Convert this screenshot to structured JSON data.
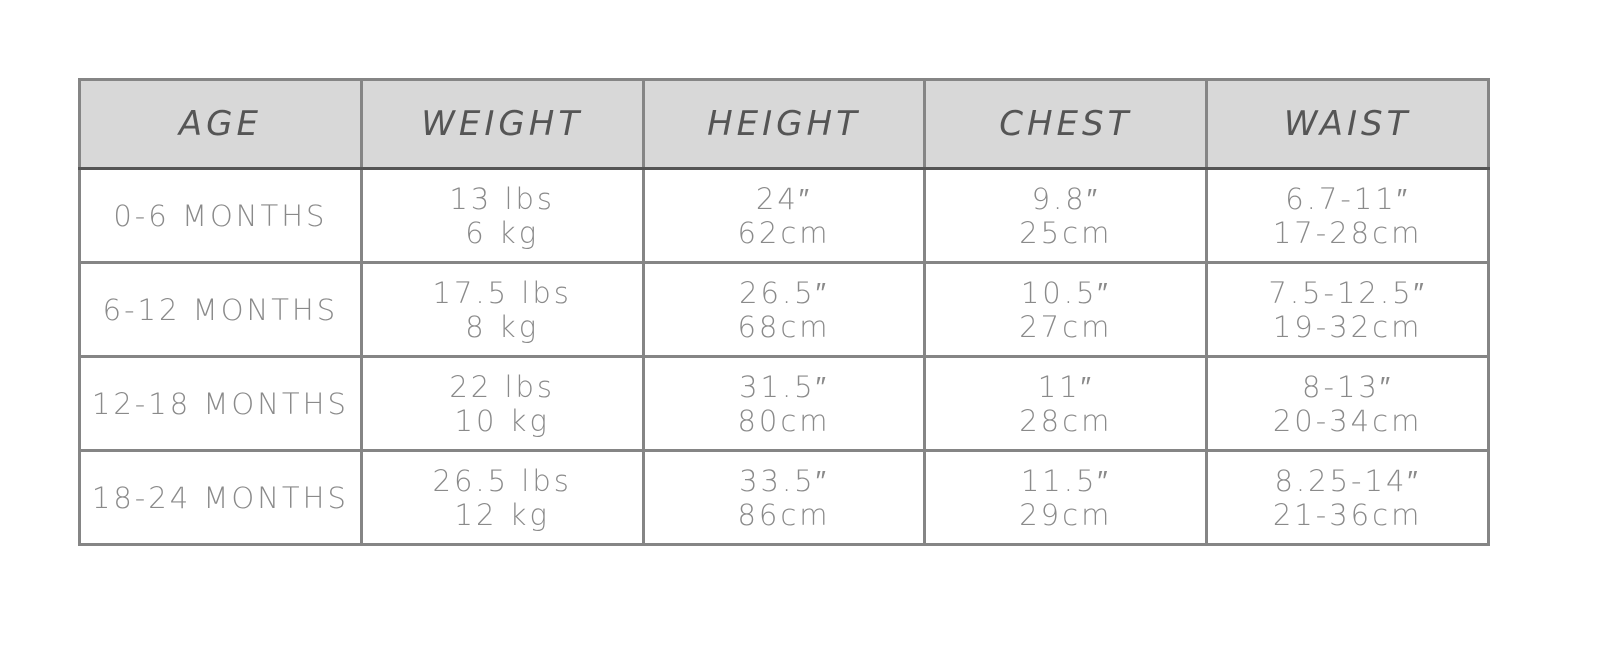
{
  "table": {
    "headers": [
      "AGE",
      "WEIGHT",
      "HEIGHT",
      "CHEST",
      "WAIST"
    ],
    "rows": [
      {
        "age": "0-6 MONTHS",
        "weight": [
          "13 lbs",
          "6 kg"
        ],
        "height": [
          "24″",
          "62cm"
        ],
        "chest": [
          "9.8″",
          "25cm"
        ],
        "waist": [
          "6.7-11″",
          "17-28cm"
        ]
      },
      {
        "age": "6-12 MONTHS",
        "weight": [
          "17.5 lbs",
          "8 kg"
        ],
        "height": [
          "26.5″",
          "68cm"
        ],
        "chest": [
          "10.5″",
          "27cm"
        ],
        "waist": [
          "7.5-12.5″",
          "19-32cm"
        ]
      },
      {
        "age": "12-18 MONTHS",
        "weight": [
          "22 lbs",
          "10 kg"
        ],
        "height": [
          "31.5″",
          "80cm"
        ],
        "chest": [
          "11″",
          "28cm"
        ],
        "waist": [
          "8-13″",
          "20-34cm"
        ]
      },
      {
        "age": "18-24 MONTHS",
        "weight": [
          "26.5 lbs",
          "12 kg"
        ],
        "height": [
          "33.5″",
          "86cm"
        ],
        "chest": [
          "11.5″",
          "29cm"
        ],
        "waist": [
          "8.25-14″",
          "21-36cm"
        ]
      }
    ]
  }
}
